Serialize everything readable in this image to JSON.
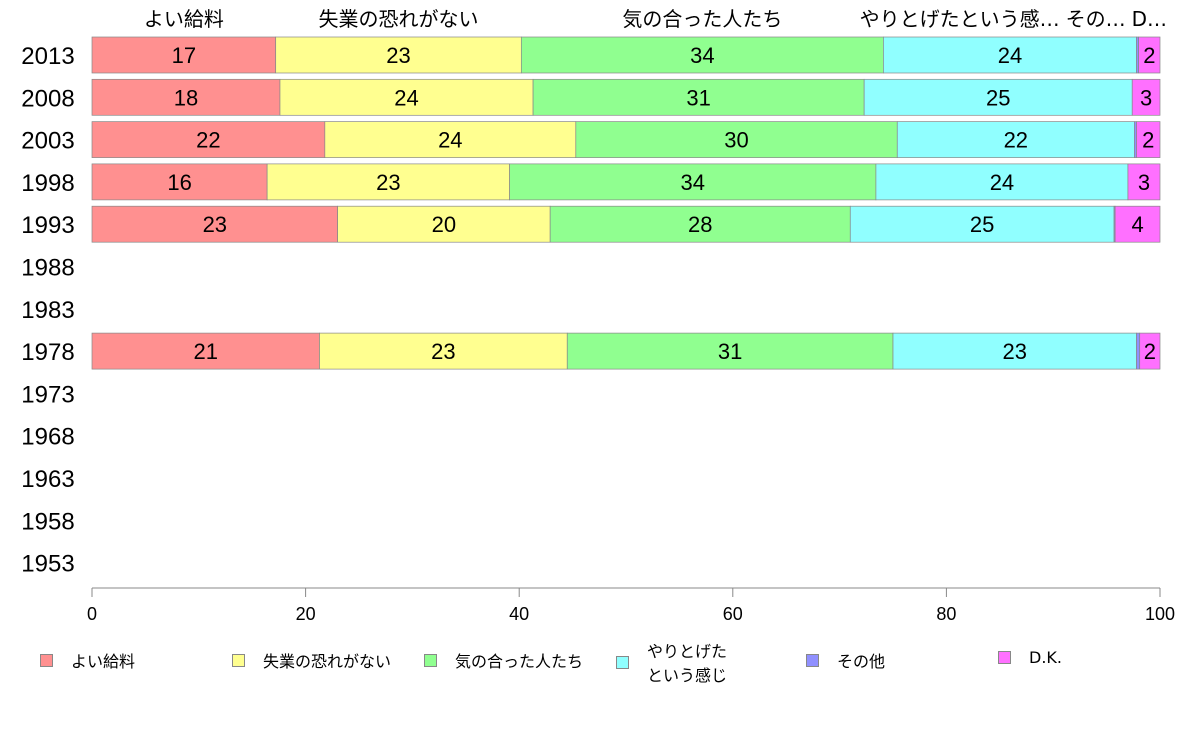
{
  "chart_data": {
    "type": "bar",
    "orientation": "horizontal-stacked",
    "categories": [
      "2013",
      "2008",
      "2003",
      "1998",
      "1993",
      "1988",
      "1983",
      "1978",
      "1973",
      "1968",
      "1963",
      "1958",
      "1953"
    ],
    "series": [
      {
        "name": "よい給料",
        "header": "よい給料",
        "color": "#ff9090",
        "values": [
          17.2,
          17.6,
          21.8,
          16.4,
          23.0,
          null,
          null,
          21.3,
          null,
          null,
          null,
          null,
          null
        ]
      },
      {
        "name": "失業の恐れがない",
        "header": "失業の恐れがない",
        "color": "#ffff90",
        "values": [
          23.0,
          23.7,
          23.5,
          22.7,
          19.9,
          null,
          null,
          23.2,
          null,
          null,
          null,
          null,
          null
        ]
      },
      {
        "name": "気の合った人たち",
        "header": "気の合った人たち",
        "color": "#90ff90",
        "values": [
          33.9,
          31.0,
          30.1,
          34.3,
          28.1,
          null,
          null,
          30.5,
          null,
          null,
          null,
          null,
          null
        ]
      },
      {
        "name": "やりとげたという感じ",
        "legend_lines": [
          "やりとげた",
          "という感じ"
        ],
        "header": "やりとげたという感…",
        "color": "#90ffff",
        "values": [
          23.7,
          25.1,
          22.2,
          23.6,
          24.7,
          null,
          null,
          22.8,
          null,
          null,
          null,
          null,
          null
        ]
      },
      {
        "name": "その他",
        "header": "その…",
        "color": "#9090ff",
        "values": [
          0.2,
          0,
          0.2,
          0,
          0.1,
          null,
          null,
          0.3,
          null,
          null,
          null,
          null,
          null
        ]
      },
      {
        "name": "D.K.",
        "header": "D…",
        "color": "#ff70ff",
        "values": [
          2.0,
          2.6,
          2.2,
          3.0,
          4.2,
          null,
          null,
          1.9,
          null,
          null,
          null,
          null,
          null
        ]
      }
    ],
    "xlim": [
      0,
      100
    ],
    "xticks": [
      "0",
      "20",
      "40",
      "60",
      "80",
      "100"
    ],
    "legend_placement": "bottom"
  }
}
